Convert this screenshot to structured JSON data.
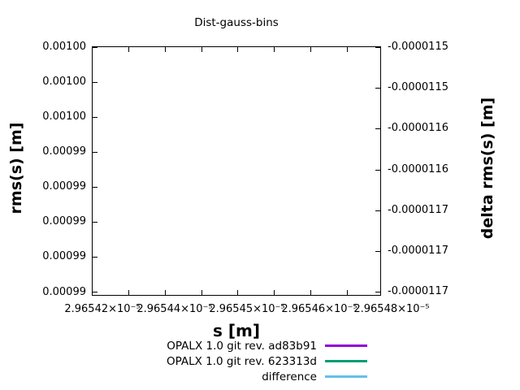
{
  "chart": {
    "title": "Dist-gauss-bins",
    "xlabel": "s [m]",
    "ylabel_left": "rms(s) [m]",
    "ylabel_right": "delta rms(s) [m]"
  },
  "axes": {
    "x": {
      "tick_labels": [
        "2.96542×10⁻⁵",
        "2.96544×10⁻⁵",
        "2.96545×10⁻⁵",
        "2.96546×10⁻⁵",
        "2.96548×10⁻⁵"
      ]
    },
    "left": {
      "tick_labels": [
        "0.00100",
        "0.00100",
        "0.00100",
        "0.00099",
        "0.00099",
        "0.00099",
        "0.00099",
        "0.00099"
      ]
    },
    "right": {
      "tick_labels": [
        "-0.0000115",
        "-0.0000115",
        "-0.0000116",
        "-0.0000116",
        "-0.0000117",
        "-0.0000117",
        "-0.0000117"
      ]
    }
  },
  "legend": {
    "items": [
      {
        "label": "OPALX 1.0 git rev. ad83b91",
        "color": "#9400d3"
      },
      {
        "label": "OPALX 1.0 git rev. 623313d",
        "color": "#009e73"
      },
      {
        "label": "difference",
        "color": "#66bfe9"
      }
    ]
  },
  "chart_data": {
    "type": "line",
    "title": "Dist-gauss-bins",
    "xlabel": "s [m]",
    "ylabel": "rms(s) [m]",
    "y2label": "delta rms(s) [m]",
    "x_tick_labels": [
      "2.96542×10⁻⁵",
      "2.96544×10⁻⁵",
      "2.96545×10⁻⁵",
      "2.96546×10⁻⁵",
      "2.96548×10⁻⁵"
    ],
    "y_tick_labels": [
      "0.00100",
      "0.00100",
      "0.00100",
      "0.00099",
      "0.00099",
      "0.00099",
      "0.00099",
      "0.00099"
    ],
    "y2_tick_labels": [
      "-0.0000115",
      "-0.0000115",
      "-0.0000116",
      "-0.0000116",
      "-0.0000117",
      "-0.0000117",
      "-0.0000117"
    ],
    "xlim": [
      2.96542e-05,
      2.96548e-05
    ],
    "ylim": [
      0.00099,
      0.001
    ],
    "y2lim": [
      -1.17e-05,
      -1.15e-05
    ],
    "grid": false,
    "legend_position": "below-plot",
    "series": [
      {
        "name": "OPALX 1.0 git rev. ad83b91",
        "color": "#9400d3",
        "axis": "left",
        "visible_points": []
      },
      {
        "name": "OPALX 1.0 git rev. 623313d",
        "color": "#009e73",
        "axis": "left",
        "visible_points": []
      },
      {
        "name": "difference",
        "color": "#66bfe9",
        "axis": "right",
        "visible_points": []
      }
    ],
    "plot_area_content": "empty (no visible data curves)"
  }
}
